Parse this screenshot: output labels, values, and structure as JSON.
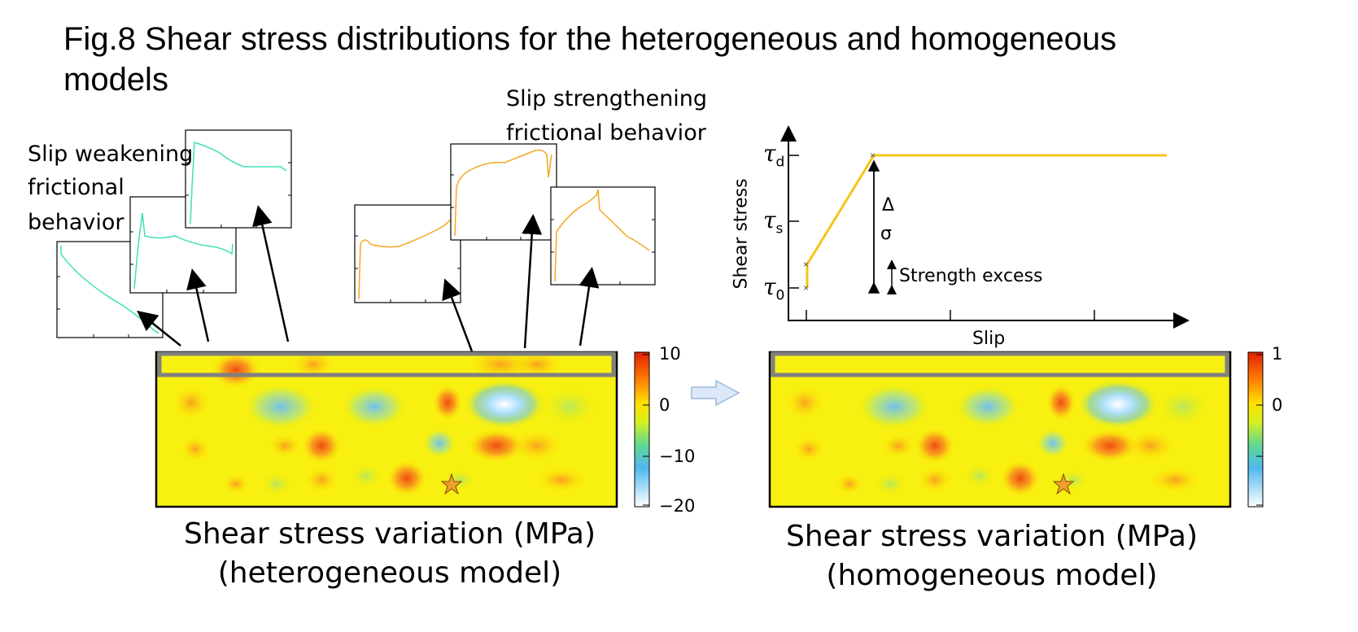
{
  "figure": {
    "title_line1": "Fig.8 Shear stress distributions for the heterogeneous and homogeneous",
    "title_line2": "models"
  },
  "annotations": {
    "weakening_line1": "Slip weakening",
    "weakening_line2": "frictional",
    "weakening_line3": "behavior",
    "strengthening_line1": "Slip  strengthening",
    "strengthening_line2": "frictional behavior"
  },
  "heterogeneous_panel": {
    "caption_line1": "Shear stress variation (MPa)",
    "caption_line2": "(heterogeneous model)",
    "colorbar_ticks": [
      "10",
      "0",
      "−10",
      "−20"
    ]
  },
  "homogeneous_panel": {
    "caption_line1": "Shear stress variation (MPa)",
    "caption_line2": "(homogeneous model)",
    "colorbar_ticks": [
      "1",
      "0"
    ]
  },
  "friction_law": {
    "ylabel": "Shear stress",
    "xlabel": "Slip",
    "tau_d": "d",
    "tau_s": "s",
    "tau_0": "0",
    "delta_label_line1": "Δ",
    "delta_label_line2": "σ",
    "strength_excess": "Strength excess"
  },
  "colors": {
    "weakening_curve": "#3fe0b8",
    "strengthening_curve": "#f5a623",
    "law_curve": "#f5c518",
    "highlight_box": "#808080",
    "star": "#f0a030"
  }
}
